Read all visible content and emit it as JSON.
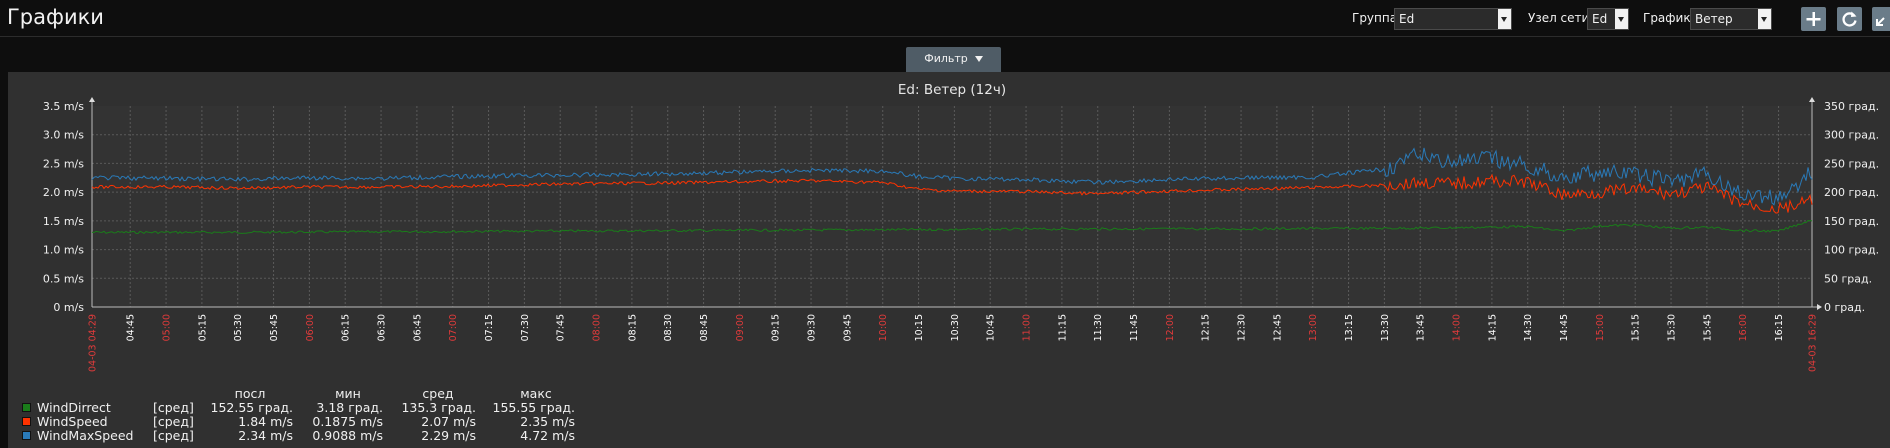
{
  "header": {
    "title": "Графики",
    "group_label": "Группа",
    "group_value": "Ed",
    "host_label": "Узел сети",
    "host_value": "Ed",
    "graph_label": "График",
    "graph_value": "Ветер",
    "buttons": [
      "plus-icon",
      "refresh-icon",
      "fullscreen-icon"
    ]
  },
  "filter": {
    "label": "Фильтр"
  },
  "colors": {
    "WindDirrect": "#1a7c1a",
    "WindSpeed": "#ff3300",
    "WindMaxSpeed": "#2a7ab8",
    "time_label_hour": "#e33b3b",
    "time_label": "#ffffff"
  },
  "chart_data": {
    "type": "line",
    "title": "Ed: Ветер (12ч)",
    "y_left": {
      "min": 0,
      "max": 3.5,
      "ticks": [
        "0 m/s",
        "0.5 m/s",
        "1.0 m/s",
        "1.5 m/s",
        "2.0 m/s",
        "2.5 m/s",
        "3.0 m/s",
        "3.5 m/s"
      ]
    },
    "y_right": {
      "min": 0,
      "max": 350,
      "ticks": [
        "0 град.",
        "50 град.",
        "100 град.",
        "150 град.",
        "200 град.",
        "250 град.",
        "300 град.",
        "350 град."
      ]
    },
    "x_start_label": "04-03 04:29",
    "x_end_label": "04-03 16:29",
    "x_ticks": [
      "04:45",
      "05:00",
      "05:15",
      "05:30",
      "05:45",
      "06:00",
      "06:15",
      "06:30",
      "06:45",
      "07:00",
      "07:15",
      "07:30",
      "07:45",
      "08:00",
      "08:15",
      "08:30",
      "08:45",
      "09:00",
      "09:15",
      "09:30",
      "09:45",
      "10:00",
      "10:15",
      "10:30",
      "10:45",
      "11:00",
      "11:15",
      "11:30",
      "11:45",
      "12:00",
      "12:15",
      "12:30",
      "12:45",
      "13:00",
      "13:15",
      "13:30",
      "13:45",
      "14:00",
      "14:15",
      "14:30",
      "14:45",
      "15:00",
      "15:15",
      "15:30",
      "15:45",
      "16:00",
      "16:15"
    ],
    "grid": true,
    "series": [
      {
        "name": "WindDirrect",
        "axis": "right",
        "unit": "град.",
        "x": [
          "04:29",
          "05:30",
          "06:30",
          "07:30",
          "08:30",
          "09:30",
          "10:30",
          "11:30",
          "12:30",
          "13:30",
          "14:00",
          "14:30",
          "14:45",
          "15:00",
          "15:15",
          "15:30",
          "15:45",
          "16:00",
          "16:15",
          "16:29"
        ],
        "values": [
          130,
          130,
          131,
          132,
          133,
          134,
          135,
          136,
          136,
          137,
          138,
          140,
          132,
          141,
          143,
          137,
          139,
          133,
          132,
          152
        ]
      },
      {
        "name": "WindSpeed",
        "axis": "left",
        "unit": "m/s",
        "x": [
          "04:29",
          "05:00",
          "05:30",
          "06:00",
          "06:30",
          "07:00",
          "07:30",
          "08:00",
          "08:30",
          "09:00",
          "09:30",
          "10:00",
          "10:15",
          "10:30",
          "11:00",
          "11:30",
          "12:00",
          "12:30",
          "13:00",
          "13:30",
          "13:45",
          "14:00",
          "14:15",
          "14:30",
          "14:45",
          "15:00",
          "15:15",
          "15:30",
          "15:45",
          "16:00",
          "16:15",
          "16:29"
        ],
        "values": [
          2.09,
          2.09,
          2.07,
          2.09,
          2.09,
          2.1,
          2.13,
          2.15,
          2.16,
          2.18,
          2.2,
          2.17,
          2.05,
          2.02,
          2.01,
          1.97,
          2.02,
          2.05,
          2.08,
          2.12,
          2.17,
          2.15,
          2.2,
          2.17,
          1.95,
          2.0,
          2.05,
          1.97,
          2.08,
          1.8,
          1.7,
          1.84
        ]
      },
      {
        "name": "WindMaxSpeed",
        "axis": "left",
        "unit": "m/s",
        "x": [
          "04:29",
          "05:00",
          "05:30",
          "06:00",
          "06:30",
          "07:00",
          "07:30",
          "08:00",
          "08:30",
          "09:00",
          "09:30",
          "10:00",
          "10:15",
          "10:30",
          "11:00",
          "11:30",
          "12:00",
          "12:30",
          "13:00",
          "13:30",
          "13:45",
          "14:00",
          "14:15",
          "14:30",
          "14:45",
          "15:00",
          "15:15",
          "15:30",
          "15:45",
          "16:00",
          "16:15",
          "16:29"
        ],
        "values": [
          2.25,
          2.24,
          2.22,
          2.25,
          2.24,
          2.27,
          2.29,
          2.3,
          2.32,
          2.35,
          2.38,
          2.37,
          2.27,
          2.24,
          2.22,
          2.17,
          2.22,
          2.25,
          2.26,
          2.4,
          2.65,
          2.52,
          2.58,
          2.45,
          2.25,
          2.35,
          2.3,
          2.2,
          2.3,
          1.95,
          1.9,
          2.34
        ]
      }
    ]
  },
  "legend": {
    "headers": {
      "last": "посл",
      "min": "мин",
      "avg": "сред",
      "max": "макс"
    },
    "rows": [
      {
        "name": "WindDirrect",
        "func": "[сред]",
        "last": "152.55 град.",
        "min": "3.18 град.",
        "avg": "135.3 град.",
        "max": "155.55 град."
      },
      {
        "name": "WindSpeed",
        "func": "[сред]",
        "last": "1.84 m/s",
        "min": "0.1875 m/s",
        "avg": "2.07 m/s",
        "max": "2.35 m/s"
      },
      {
        "name": "WindMaxSpeed",
        "func": "[сред]",
        "last": "2.34 m/s",
        "min": "0.9088 m/s",
        "avg": "2.29 m/s",
        "max": "4.72 m/s"
      }
    ]
  }
}
